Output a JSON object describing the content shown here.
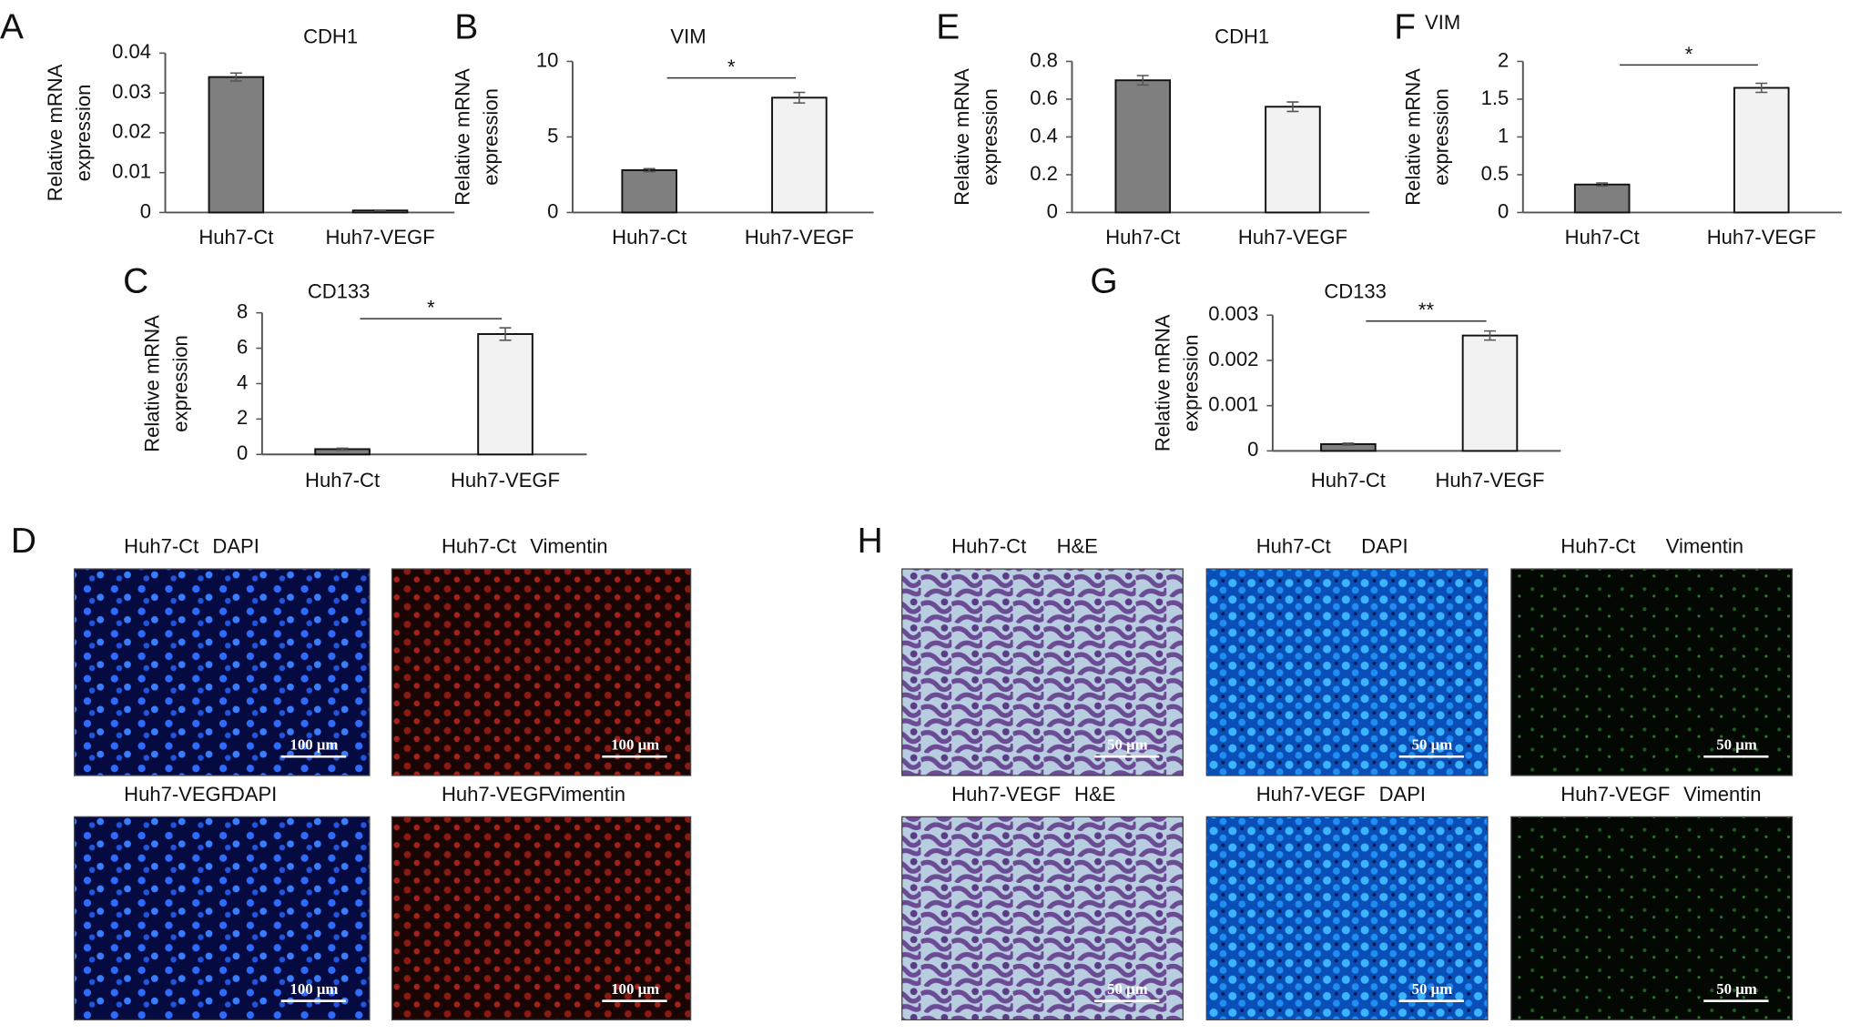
{
  "chart_data": [
    {
      "type": "bar",
      "label": "A",
      "title": "CDH1",
      "ylabel": [
        "Relative mRNA",
        "expression"
      ],
      "categories": [
        "Huh7-Ct",
        "Huh7-VEGF"
      ],
      "values": [
        0.034,
        0.0005
      ],
      "errors": [
        0.001,
        0.0001
      ],
      "colors": [
        "#7f7f7f",
        "#f2f2f2"
      ],
      "ylim": [
        0,
        0.04
      ],
      "yticks": [
        0,
        0.01,
        0.02,
        0.03,
        0.04
      ]
    },
    {
      "type": "bar",
      "label": "B",
      "title": "VIM",
      "ylabel": [
        "Relative mRNA",
        "expression"
      ],
      "categories": [
        "Huh7-Ct",
        "Huh7-VEGF"
      ],
      "values": [
        2.8,
        7.6
      ],
      "errors": [
        0.1,
        0.35
      ],
      "colors": [
        "#7f7f7f",
        "#f2f2f2"
      ],
      "ylim": [
        0,
        10
      ],
      "yticks": [
        0,
        5,
        10
      ],
      "significance": "*"
    },
    {
      "type": "bar",
      "label": "C",
      "title": "CD133",
      "ylabel": [
        "Relative mRNA",
        "expression"
      ],
      "categories": [
        "Huh7-Ct",
        "Huh7-VEGF"
      ],
      "values": [
        0.3,
        6.8
      ],
      "errors": [
        0.05,
        0.35
      ],
      "colors": [
        "#7f7f7f",
        "#f2f2f2"
      ],
      "ylim": [
        0,
        8
      ],
      "yticks": [
        0,
        2,
        4,
        6,
        8
      ],
      "significance": "*"
    },
    {
      "type": "bar",
      "label": "E",
      "title": "CDH1",
      "ylabel": [
        "Relative mRNA",
        "expression"
      ],
      "categories": [
        "Huh7-Ct",
        "Huh7-VEGF"
      ],
      "values": [
        0.7,
        0.56
      ],
      "errors": [
        0.025,
        0.025
      ],
      "colors": [
        "#7f7f7f",
        "#f2f2f2"
      ],
      "ylim": [
        0,
        0.8
      ],
      "yticks": [
        0,
        0.2,
        0.4,
        0.6,
        0.8
      ]
    },
    {
      "type": "bar",
      "label": "F",
      "title": "VIM",
      "ylabel": [
        "Relative mRNA",
        "expression"
      ],
      "categories": [
        "Huh7-Ct",
        "Huh7-VEGF"
      ],
      "values": [
        0.37,
        1.65
      ],
      "errors": [
        0.02,
        0.06
      ],
      "colors": [
        "#7f7f7f",
        "#f2f2f2"
      ],
      "ylim": [
        0,
        2
      ],
      "yticks": [
        0,
        0.5,
        1,
        1.5,
        2
      ],
      "significance": "*"
    },
    {
      "type": "bar",
      "label": "G",
      "title": "CD133",
      "ylabel": [
        "Relative mRNA",
        "expression"
      ],
      "categories": [
        "Huh7-Ct",
        "Huh7-VEGF"
      ],
      "values": [
        0.00015,
        0.00255
      ],
      "errors": [
        2e-05,
        0.0001
      ],
      "colors": [
        "#7f7f7f",
        "#f2f2f2"
      ],
      "ylim": [
        0,
        0.003
      ],
      "yticks": [
        0,
        0.001,
        0.002,
        0.003
      ],
      "significance": "**"
    }
  ],
  "image_panels": [
    {
      "label": "D",
      "images": [
        {
          "sample": "Huh7-Ct",
          "stain": "DAPI",
          "scale_bar": "100 μm"
        },
        {
          "sample": "Huh7-Ct",
          "stain": "Vimentin",
          "scale_bar": "100 μm"
        },
        {
          "sample": "Huh7-VEGF",
          "stain": "DAPI",
          "scale_bar": "100 μm"
        },
        {
          "sample": "Huh7-VEGF",
          "stain": "Vimentin",
          "scale_bar": "100 μm"
        }
      ]
    },
    {
      "label": "H",
      "images": [
        {
          "sample": "Huh7-Ct",
          "stain": "H&E",
          "scale_bar": "50 μm"
        },
        {
          "sample": "Huh7-Ct",
          "stain": "DAPI",
          "scale_bar": "50 μm"
        },
        {
          "sample": "Huh7-Ct",
          "stain": "Vimentin",
          "scale_bar": "50 μm"
        },
        {
          "sample": "Huh7-VEGF",
          "stain": "H&E",
          "scale_bar": "50 μm"
        },
        {
          "sample": "Huh7-VEGF",
          "stain": "DAPI",
          "scale_bar": "50 μm"
        },
        {
          "sample": "Huh7-VEGF",
          "stain": "Vimentin",
          "scale_bar": "50 μm"
        }
      ]
    }
  ]
}
